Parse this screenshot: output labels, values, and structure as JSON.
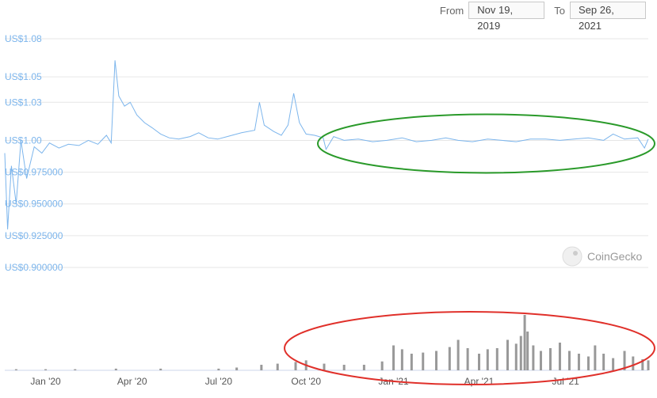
{
  "range": {
    "from_label": "From",
    "from_value": "Nov 19, 2019",
    "to_label": "To",
    "to_value": "Sep 26, 2021"
  },
  "watermark": "CoinGecko",
  "colors": {
    "price_line": "#7cb5ec",
    "volume": "#999999",
    "gridline": "#e6e6e6",
    "green_annotation": "#2a9a2a",
    "red_annotation": "#e0302a"
  },
  "chart_data": {
    "type": "line",
    "x_range": [
      "2019-11-19",
      "2021-09-26"
    ],
    "ylim": [
      0.9,
      1.08
    ],
    "y_ticks": [
      {
        "value": 1.08,
        "label": "US$1.08"
      },
      {
        "value": 1.05,
        "label": "US$1.05"
      },
      {
        "value": 1.03,
        "label": "US$1.03"
      },
      {
        "value": 1.0,
        "label": "US$1.00"
      },
      {
        "value": 0.975,
        "label": "US$0.975000"
      },
      {
        "value": 0.95,
        "label": "US$0.950000"
      },
      {
        "value": 0.925,
        "label": "US$0.925000"
      },
      {
        "value": 0.9,
        "label": "US$0.900000"
      }
    ],
    "x_ticks": [
      {
        "date": "2020-01-01",
        "label": "Jan '20"
      },
      {
        "date": "2020-04-01",
        "label": "Apr '20"
      },
      {
        "date": "2020-07-01",
        "label": "Jul '20"
      },
      {
        "date": "2020-10-01",
        "label": "Oct '20"
      },
      {
        "date": "2021-01-01",
        "label": "Jan '21"
      },
      {
        "date": "2021-04-01",
        "label": "Apr '21"
      },
      {
        "date": "2021-07-01",
        "label": "Jul '21"
      }
    ],
    "series": [
      {
        "type": "line",
        "points": [
          [
            "2019-11-19",
            0.99
          ],
          [
            "2019-11-22",
            0.93
          ],
          [
            "2019-11-26",
            0.98
          ],
          [
            "2019-12-01",
            0.95
          ],
          [
            "2019-12-06",
            1.0
          ],
          [
            "2019-12-12",
            0.97
          ],
          [
            "2019-12-20",
            0.995
          ],
          [
            "2019-12-28",
            0.99
          ],
          [
            "2020-01-05",
            0.998
          ],
          [
            "2020-01-15",
            0.994
          ],
          [
            "2020-01-25",
            0.997
          ],
          [
            "2020-02-05",
            0.996
          ],
          [
            "2020-02-15",
            1.0
          ],
          [
            "2020-02-25",
            0.997
          ],
          [
            "2020-03-05",
            1.004
          ],
          [
            "2020-03-10",
            0.998
          ],
          [
            "2020-03-14",
            1.063
          ],
          [
            "2020-03-18",
            1.035
          ],
          [
            "2020-03-24",
            1.027
          ],
          [
            "2020-03-30",
            1.03
          ],
          [
            "2020-04-06",
            1.02
          ],
          [
            "2020-04-14",
            1.014
          ],
          [
            "2020-04-22",
            1.01
          ],
          [
            "2020-05-01",
            1.005
          ],
          [
            "2020-05-10",
            1.002
          ],
          [
            "2020-05-20",
            1.001
          ],
          [
            "2020-06-01",
            1.003
          ],
          [
            "2020-06-10",
            1.006
          ],
          [
            "2020-06-20",
            1.002
          ],
          [
            "2020-06-30",
            1.001
          ],
          [
            "2020-07-10",
            1.003
          ],
          [
            "2020-07-25",
            1.006
          ],
          [
            "2020-08-08",
            1.008
          ],
          [
            "2020-08-13",
            1.03
          ],
          [
            "2020-08-18",
            1.012
          ],
          [
            "2020-08-28",
            1.007
          ],
          [
            "2020-09-05",
            1.004
          ],
          [
            "2020-09-12",
            1.012
          ],
          [
            "2020-09-18",
            1.037
          ],
          [
            "2020-09-24",
            1.014
          ],
          [
            "2020-10-01",
            1.005
          ],
          [
            "2020-10-10",
            1.004
          ],
          [
            "2020-10-19",
            1.002
          ],
          [
            "2020-10-22",
            0.993
          ],
          [
            "2020-10-30",
            1.003
          ],
          [
            "2020-11-10",
            1.0
          ],
          [
            "2020-11-25",
            1.001
          ],
          [
            "2020-12-10",
            0.999
          ],
          [
            "2020-12-25",
            1.0
          ],
          [
            "2021-01-10",
            1.002
          ],
          [
            "2021-01-25",
            0.999
          ],
          [
            "2021-02-10",
            1.0
          ],
          [
            "2021-02-25",
            1.002
          ],
          [
            "2021-03-10",
            1.0
          ],
          [
            "2021-03-25",
            0.999
          ],
          [
            "2021-04-10",
            1.001
          ],
          [
            "2021-04-25",
            1.0
          ],
          [
            "2021-05-10",
            0.999
          ],
          [
            "2021-05-25",
            1.001
          ],
          [
            "2021-06-10",
            1.001
          ],
          [
            "2021-06-25",
            1.0
          ],
          [
            "2021-07-10",
            1.001
          ],
          [
            "2021-07-25",
            1.002
          ],
          [
            "2021-08-10",
            1.0
          ],
          [
            "2021-08-20",
            1.005
          ],
          [
            "2021-09-01",
            1.001
          ],
          [
            "2021-09-15",
            1.002
          ],
          [
            "2021-09-22",
            0.994
          ],
          [
            "2021-09-26",
            1.001
          ]
        ]
      },
      {
        "type": "bar",
        "points": [
          [
            "2019-12-01",
            0.02
          ],
          [
            "2020-01-01",
            0.02
          ],
          [
            "2020-02-01",
            0.02
          ],
          [
            "2020-03-15",
            0.03
          ],
          [
            "2020-05-01",
            0.03
          ],
          [
            "2020-07-01",
            0.03
          ],
          [
            "2020-07-20",
            0.05
          ],
          [
            "2020-08-15",
            0.1
          ],
          [
            "2020-09-01",
            0.12
          ],
          [
            "2020-09-20",
            0.15
          ],
          [
            "2020-10-01",
            0.18
          ],
          [
            "2020-10-20",
            0.12
          ],
          [
            "2020-11-10",
            0.1
          ],
          [
            "2020-12-01",
            0.1
          ],
          [
            "2020-12-20",
            0.16
          ],
          [
            "2021-01-01",
            0.45
          ],
          [
            "2021-01-10",
            0.38
          ],
          [
            "2021-01-20",
            0.3
          ],
          [
            "2021-02-01",
            0.32
          ],
          [
            "2021-02-15",
            0.35
          ],
          [
            "2021-03-01",
            0.42
          ],
          [
            "2021-03-10",
            0.55
          ],
          [
            "2021-03-20",
            0.4
          ],
          [
            "2021-04-01",
            0.3
          ],
          [
            "2021-04-10",
            0.38
          ],
          [
            "2021-04-20",
            0.4
          ],
          [
            "2021-05-01",
            0.55
          ],
          [
            "2021-05-10",
            0.48
          ],
          [
            "2021-05-15",
            0.62
          ],
          [
            "2021-05-19",
            1.0
          ],
          [
            "2021-05-22",
            0.7
          ],
          [
            "2021-05-28",
            0.45
          ],
          [
            "2021-06-05",
            0.35
          ],
          [
            "2021-06-15",
            0.4
          ],
          [
            "2021-06-25",
            0.5
          ],
          [
            "2021-07-05",
            0.35
          ],
          [
            "2021-07-15",
            0.3
          ],
          [
            "2021-07-25",
            0.25
          ],
          [
            "2021-08-01",
            0.45
          ],
          [
            "2021-08-10",
            0.3
          ],
          [
            "2021-08-20",
            0.22
          ],
          [
            "2021-09-01",
            0.35
          ],
          [
            "2021-09-10",
            0.25
          ],
          [
            "2021-09-20",
            0.2
          ],
          [
            "2021-09-26",
            0.18
          ]
        ]
      }
    ],
    "annotations": [
      {
        "shape": "ellipse",
        "color": "green",
        "from_date": "2020-10-20",
        "to_date": "2021-09-26",
        "y_center": 1.0
      },
      {
        "shape": "ellipse",
        "color": "red",
        "from_date": "2020-09-15",
        "to_date": "2021-09-26",
        "area": "volume"
      }
    ]
  }
}
